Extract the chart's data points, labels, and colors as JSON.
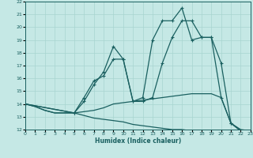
{
  "xlabel": "Humidex (Indice chaleur)",
  "background_color": "#c5e8e5",
  "grid_color": "#a8d5d0",
  "line_color": "#1a6060",
  "xlim": [
    0,
    23
  ],
  "ylim": [
    12,
    22
  ],
  "xticks": [
    0,
    1,
    2,
    3,
    4,
    5,
    6,
    7,
    8,
    9,
    10,
    11,
    12,
    13,
    14,
    15,
    16,
    17,
    18,
    19,
    20,
    21,
    22,
    23
  ],
  "yticks": [
    12,
    13,
    14,
    15,
    16,
    17,
    18,
    19,
    20,
    21,
    22
  ],
  "line1_x": [
    0,
    1,
    2,
    3,
    4,
    5,
    6,
    7,
    8,
    9,
    10,
    11,
    12,
    13,
    14,
    15,
    16,
    17,
    18,
    19,
    20,
    21,
    22,
    23
  ],
  "line1_y": [
    14,
    13.8,
    13.5,
    13.3,
    13.3,
    13.3,
    13.1,
    12.9,
    12.8,
    12.7,
    12.6,
    12.4,
    12.3,
    12.2,
    12.1,
    12.0,
    12.0,
    11.9,
    11.9,
    11.9,
    11.9,
    11.9,
    11.9,
    11.9
  ],
  "line2_x": [
    0,
    1,
    2,
    3,
    4,
    5,
    6,
    7,
    8,
    9,
    10,
    11,
    12,
    13,
    14,
    15,
    16,
    17,
    18,
    19,
    20,
    21,
    22,
    23
  ],
  "line2_y": [
    14,
    13.8,
    13.5,
    13.3,
    13.3,
    13.3,
    13.4,
    13.5,
    13.7,
    14.0,
    14.1,
    14.2,
    14.3,
    14.4,
    14.5,
    14.6,
    14.7,
    14.8,
    14.8,
    14.8,
    14.5,
    12.5,
    12.0,
    11.9
  ],
  "line3_x": [
    0,
    5,
    6,
    7,
    8,
    9,
    10,
    11,
    12,
    13,
    14,
    15,
    16,
    17,
    18,
    19,
    20,
    21,
    22,
    23
  ],
  "line3_y": [
    14,
    13.3,
    14.5,
    15.8,
    16.2,
    17.5,
    17.5,
    14.2,
    14.2,
    14.5,
    17.2,
    19.2,
    20.5,
    20.5,
    19.2,
    19.2,
    17.2,
    12.5,
    11.9,
    11.9
  ],
  "line4_x": [
    0,
    5,
    6,
    7,
    8,
    9,
    10,
    11,
    12,
    13,
    14,
    15,
    16,
    17,
    18,
    19,
    20,
    21,
    22,
    23
  ],
  "line4_y": [
    14,
    13.3,
    14.2,
    15.5,
    16.5,
    18.5,
    17.5,
    14.2,
    14.5,
    19.0,
    20.5,
    20.5,
    21.5,
    19.0,
    19.2,
    19.2,
    14.5,
    12.5,
    11.9,
    11.9
  ]
}
